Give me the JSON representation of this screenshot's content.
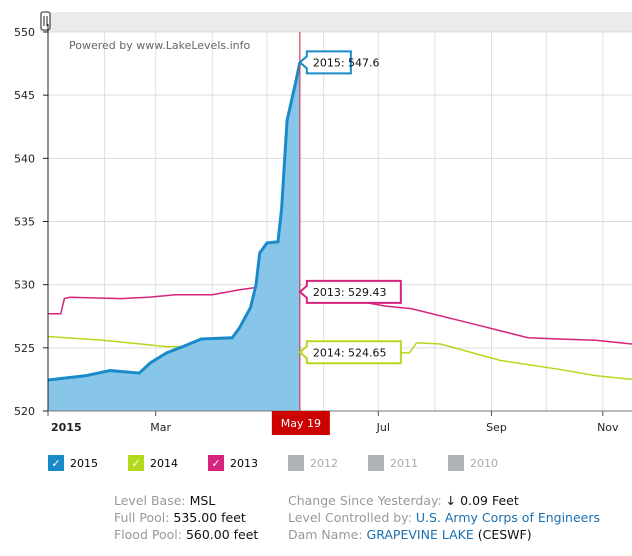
{
  "chart_data": {
    "type": "area",
    "watermark": "Powered by www.LakeLevels.info",
    "ylim": [
      520,
      550
    ],
    "yticks": [
      "520",
      "525",
      "530",
      "535",
      "540",
      "545",
      "550"
    ],
    "x_unit": "day of year",
    "xlim": [
      0,
      320
    ],
    "xticks": [
      {
        "day": 0,
        "label": "2015",
        "bold": true
      },
      {
        "day": 59,
        "label": "Mar"
      },
      {
        "day": 181,
        "label": "Jul"
      },
      {
        "day": 243,
        "label": "Sep"
      },
      {
        "day": 304,
        "label": "Nov"
      }
    ],
    "month_grid_days": [
      31,
      59,
      90,
      120,
      151,
      181,
      212,
      243,
      273,
      304
    ],
    "cursor": {
      "day": 138,
      "label": "May 19"
    },
    "series": [
      {
        "name": "2013",
        "color": "#d6247d",
        "fill": false,
        "points": [
          [
            0,
            527.7
          ],
          [
            7,
            527.7
          ],
          [
            9,
            528.9
          ],
          [
            12,
            529.0
          ],
          [
            40,
            528.9
          ],
          [
            55,
            529.0
          ],
          [
            70,
            529.2
          ],
          [
            90,
            529.2
          ],
          [
            105,
            529.6
          ],
          [
            115,
            529.8
          ],
          [
            125,
            529.6
          ],
          [
            133,
            529.4
          ],
          [
            138,
            529.43
          ],
          [
            150,
            529.1
          ],
          [
            166,
            528.8
          ],
          [
            185,
            528.3
          ],
          [
            199,
            528.1
          ],
          [
            230,
            527.0
          ],
          [
            263,
            525.8
          ],
          [
            280,
            525.7
          ],
          [
            300,
            525.6
          ],
          [
            320,
            525.3
          ]
        ],
        "tooltip": "2013: 529.43"
      },
      {
        "name": "2014",
        "color": "#b3d91c",
        "fill": false,
        "points": [
          [
            0,
            525.9
          ],
          [
            30,
            525.6
          ],
          [
            65,
            525.1
          ],
          [
            100,
            525.1
          ],
          [
            129,
            524.7
          ],
          [
            138,
            524.65
          ],
          [
            170,
            524.6
          ],
          [
            198,
            524.6
          ],
          [
            202,
            525.4
          ],
          [
            215,
            525.3
          ],
          [
            248,
            524.0
          ],
          [
            280,
            523.3
          ],
          [
            300,
            522.8
          ],
          [
            320,
            522.5
          ]
        ],
        "tooltip": "2014: 524.65"
      },
      {
        "name": "2015",
        "color": "#1a8bc9",
        "fill": true,
        "points": [
          [
            0,
            522.45
          ],
          [
            21,
            522.8
          ],
          [
            34,
            523.2
          ],
          [
            50,
            523.0
          ],
          [
            56,
            523.8
          ],
          [
            65,
            524.6
          ],
          [
            74,
            525.1
          ],
          [
            84,
            525.7
          ],
          [
            101,
            525.8
          ],
          [
            105,
            526.6
          ],
          [
            111,
            528.2
          ],
          [
            114,
            530
          ],
          [
            116,
            532.5
          ],
          [
            120,
            533.3
          ],
          [
            126,
            533.4
          ],
          [
            128,
            536
          ],
          [
            131,
            543
          ],
          [
            136,
            546.2
          ],
          [
            138,
            547.6
          ]
        ],
        "tooltip": "2015: 547.6"
      }
    ]
  },
  "legend": [
    {
      "label": "2015",
      "color": "#1a8bc9",
      "checked": true
    },
    {
      "label": "2014",
      "color": "#b3d91c",
      "checked": true
    },
    {
      "label": "2013",
      "color": "#d6247d",
      "checked": true
    },
    {
      "label": "2012",
      "color": "#aeb3b5",
      "checked": false
    },
    {
      "label": "2011",
      "color": "#aeb3b5",
      "checked": false
    },
    {
      "label": "2010",
      "color": "#aeb3b5",
      "checked": false
    }
  ],
  "info": {
    "level_base_label": "Level Base:",
    "level_base": "MSL",
    "full_pool_label": "Full Pool:",
    "full_pool": "535.00 feet",
    "flood_pool_label": "Flood Pool:",
    "flood_pool": "560.00 feet",
    "change_label": "Change Since Yesterday:",
    "change_arrow": "↓",
    "change": "0.09 Feet",
    "controlled_label": "Level Controlled by:",
    "controlled": "U.S. Army Corps of Engineers",
    "dam_label": "Dam Name:",
    "dam": "GRAPEVINE LAKE",
    "dam_code": "(CESWF)"
  },
  "checkmark": "✓"
}
